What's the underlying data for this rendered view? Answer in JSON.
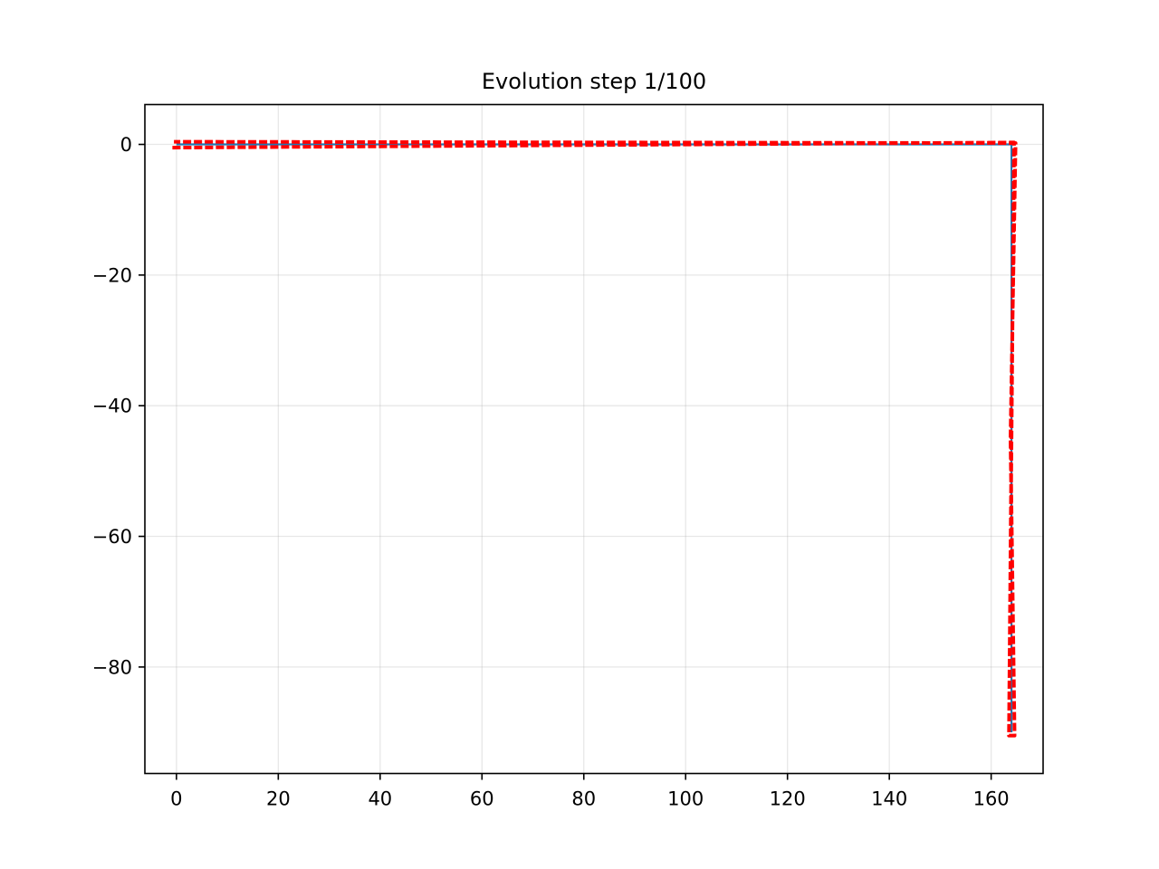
{
  "chart_data": {
    "type": "line",
    "title": "Evolution step 1/100",
    "xlabel": "",
    "ylabel": "",
    "xlim": [
      -6.2,
      170.2
    ],
    "ylim": [
      -96.3,
      6.1
    ],
    "x_ticks": [
      0,
      20,
      40,
      60,
      80,
      100,
      120,
      140,
      160
    ],
    "x_tick_labels": [
      "0",
      "20",
      "40",
      "60",
      "80",
      "100",
      "120",
      "140",
      "160"
    ],
    "y_ticks": [
      0,
      -20,
      -40,
      -60,
      -80
    ],
    "y_tick_labels": [
      "0",
      "−20",
      "−40",
      "−60",
      "−80"
    ],
    "grid": true,
    "legend": "none",
    "series": [
      {
        "color": "#1f77b4",
        "style": "solid",
        "points": [
          [
            0,
            0
          ],
          [
            164,
            0
          ],
          [
            164,
            -90
          ]
        ]
      },
      {
        "color": "#ff0000",
        "style": "dashed",
        "points": [
          [
            -0.8,
            -0.5
          ],
          [
            164.5,
            0.3
          ],
          [
            163.5,
            -90.5
          ],
          [
            164.6,
            -90.5
          ],
          [
            163.8,
            -45
          ],
          [
            164.8,
            0.2
          ],
          [
            -0.5,
            0.4
          ]
        ]
      }
    ]
  }
}
